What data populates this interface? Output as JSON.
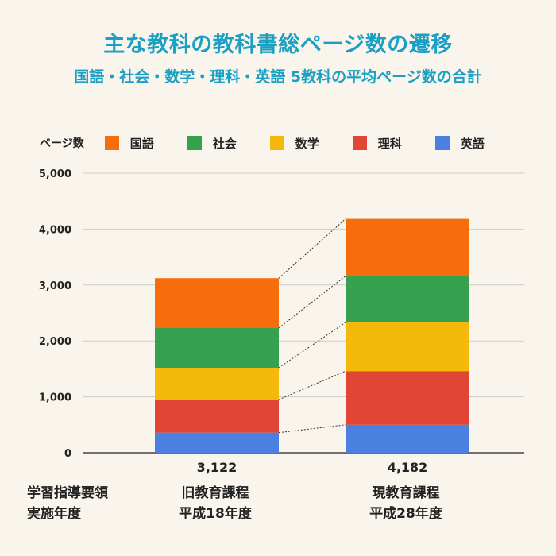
{
  "header": {
    "title": "主な教科の教科書総ページ数の遷移",
    "subtitle": "国語・社会・数学・理科・英語 5教科の平均ページ数の合計"
  },
  "legend": {
    "title": "ページ数"
  },
  "row_header": {
    "line1": "学習指導要領",
    "line2": "実施年度"
  },
  "categories_display": [
    {
      "line1": "旧教育課程",
      "line2": "平成18年度",
      "total": "3,122"
    },
    {
      "line1": "現教育課程",
      "line2": "平成28年度",
      "total": "4,182"
    }
  ],
  "chart_data": {
    "type": "bar",
    "stacked": true,
    "title": "主な教科の教科書総ページ数の遷移",
    "subtitle": "国語・社会・数学・理科・英語 5教科の平均ページ数の合計",
    "ylabel": "ページ数",
    "ylim": [
      0,
      5000
    ],
    "yticks": [
      0,
      1000,
      2000,
      3000,
      4000,
      5000
    ],
    "ytick_labels": [
      "0",
      "1,000",
      "2,000",
      "3,000",
      "4,000",
      "5,000"
    ],
    "categories": [
      "旧教育課程 平成18年度",
      "現教育課程 平成28年度"
    ],
    "totals": [
      3122,
      4182
    ],
    "series": [
      {
        "name": "英語",
        "color": "#4a80e0",
        "values": [
          360,
          500
        ]
      },
      {
        "name": "理科",
        "color": "#e04535",
        "values": [
          590,
          960
        ]
      },
      {
        "name": "数学",
        "color": "#f4b90b",
        "values": [
          570,
          870
        ]
      },
      {
        "name": "社会",
        "color": "#36a24f",
        "values": [
          710,
          830
        ]
      },
      {
        "name": "国語",
        "color": "#f76d0c",
        "values": [
          892,
          1022
        ]
      }
    ],
    "legend_order": [
      "国語",
      "社会",
      "数学",
      "理科",
      "英語"
    ],
    "legend_position": "top-left",
    "grid": true,
    "connector_lines": true
  }
}
